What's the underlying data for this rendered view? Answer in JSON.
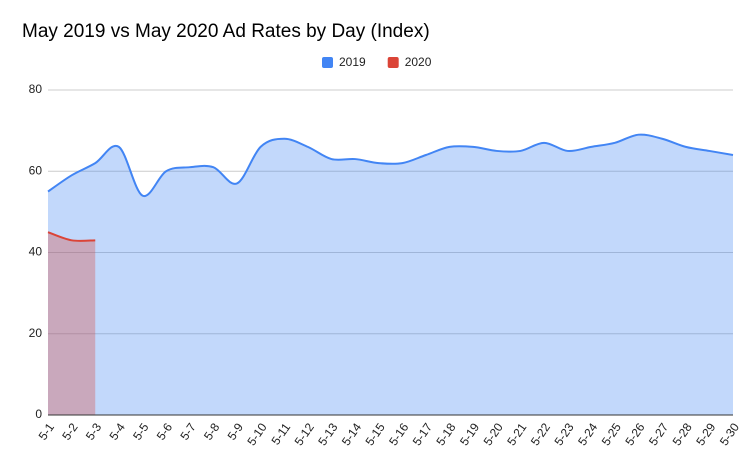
{
  "chart_data": {
    "type": "area",
    "title": "May 2019 vs May 2020 Ad Rates by Day (Index)",
    "categories": [
      "5-1",
      "5-2",
      "5-3",
      "5-4",
      "5-5",
      "5-6",
      "5-7",
      "5-8",
      "5-9",
      "5-10",
      "5-11",
      "5-12",
      "5-13",
      "5-14",
      "5-15",
      "5-16",
      "5-17",
      "5-18",
      "5-19",
      "5-20",
      "5-21",
      "5-22",
      "5-23",
      "5-24",
      "5-25",
      "5-26",
      "5-27",
      "5-28",
      "5-29",
      "5-30"
    ],
    "series": [
      {
        "name": "2019",
        "color": "#4285f4",
        "values": [
          55,
          59,
          62,
          66,
          54,
          60,
          61,
          61,
          57,
          66,
          68,
          66,
          63,
          63,
          62,
          62,
          64,
          66,
          66,
          65,
          65,
          67,
          65,
          66,
          67,
          69,
          68,
          66,
          65,
          64
        ]
      },
      {
        "name": "2020",
        "color": "#db4437",
        "values": [
          45,
          43,
          43,
          null,
          null,
          null,
          null,
          null,
          null,
          null,
          null,
          null,
          null,
          null,
          null,
          null,
          null,
          null,
          null,
          null,
          null,
          null,
          null,
          null,
          null,
          null,
          null,
          null,
          null,
          null
        ]
      }
    ],
    "ylim": [
      0,
      80
    ],
    "yticks": [
      0,
      20,
      40,
      60,
      80
    ],
    "grid": true,
    "legend": "top"
  }
}
